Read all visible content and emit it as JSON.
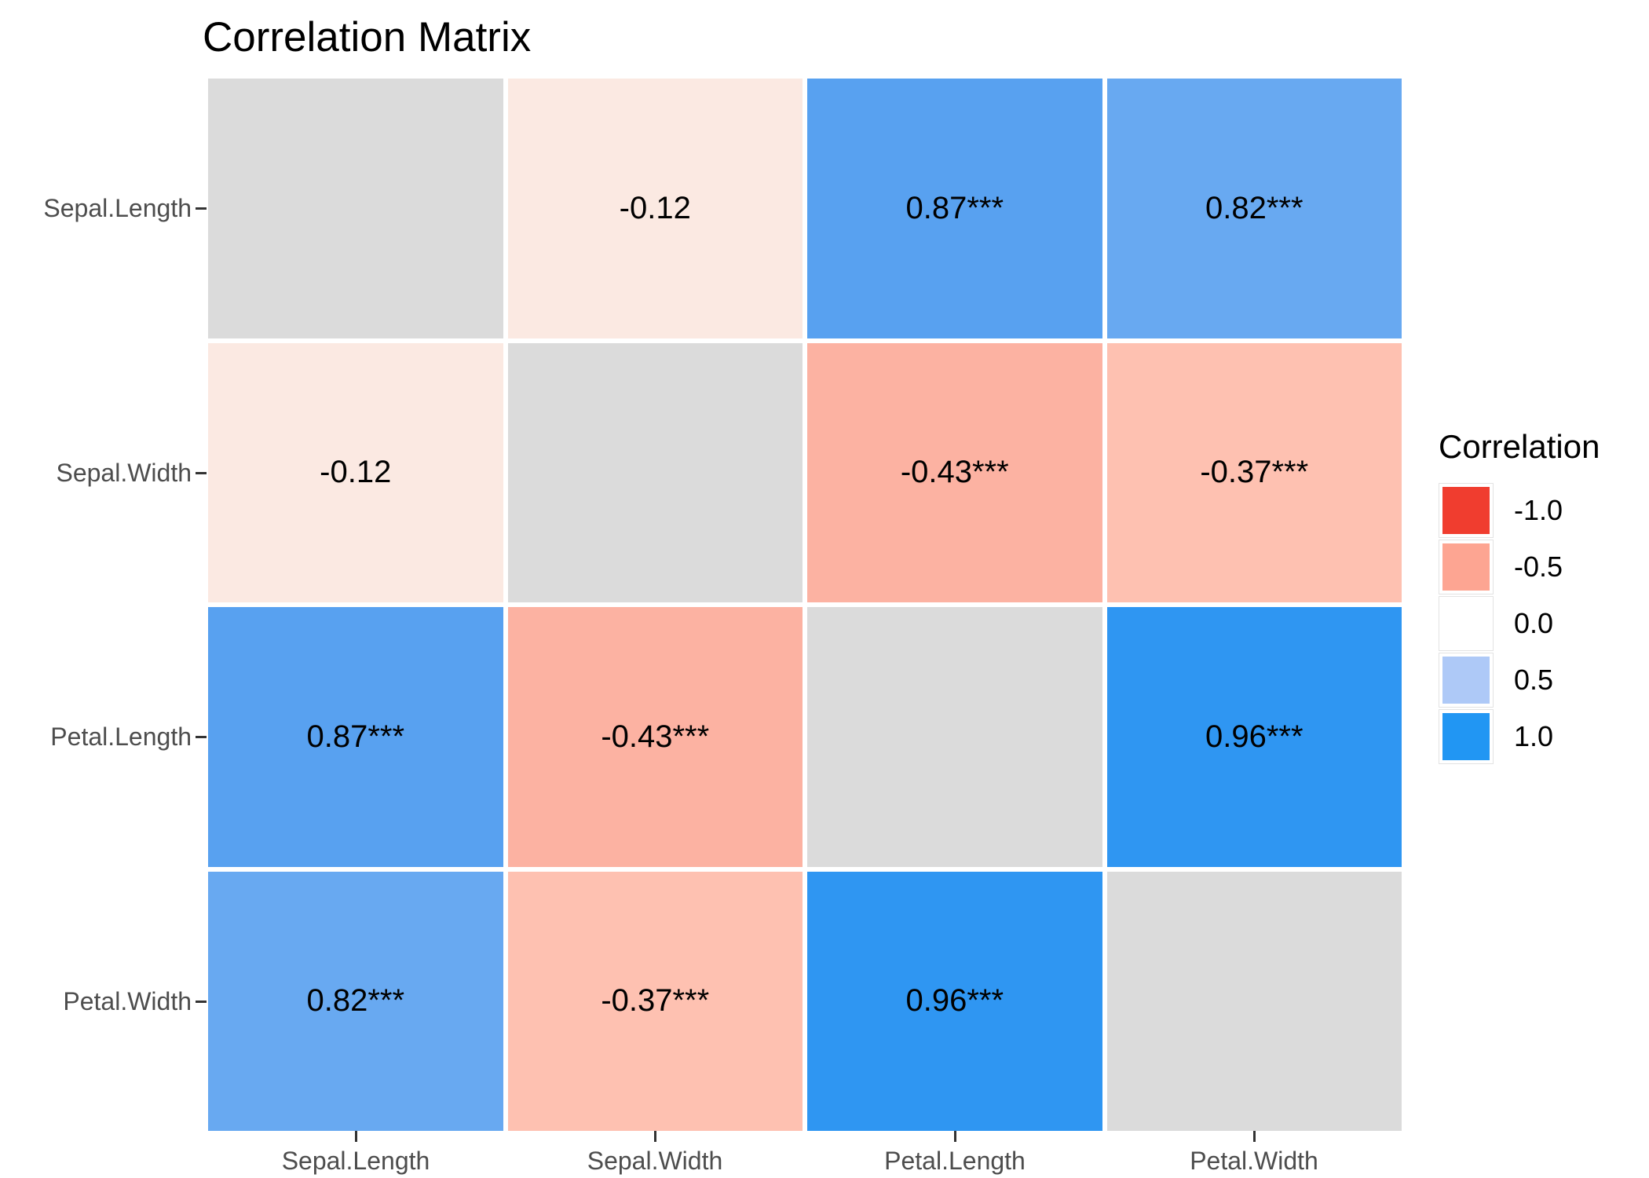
{
  "title": "Correlation Matrix",
  "axes": {
    "y_labels": [
      "Sepal.Length",
      "Sepal.Width",
      "Petal.Length",
      "Petal.Width"
    ],
    "x_labels": [
      "Sepal.Length",
      "Sepal.Width",
      "Petal.Length",
      "Petal.Width"
    ]
  },
  "legend": {
    "title": "Correlation",
    "entries": [
      {
        "label": "-1.0",
        "color": "#F03D2F"
      },
      {
        "label": "-0.5",
        "color": "#FDA592"
      },
      {
        "label": "0.0",
        "color": "#FFFFFF"
      },
      {
        "label": "0.5",
        "color": "#AEC9F7"
      },
      {
        "label": "1.0",
        "color": "#2196F3"
      }
    ]
  },
  "chart_data": {
    "type": "heatmap",
    "title": "Correlation Matrix",
    "legend_title": "Correlation",
    "variables": [
      "Sepal.Length",
      "Sepal.Width",
      "Petal.Length",
      "Petal.Width"
    ],
    "matrix": [
      [
        null,
        -0.12,
        0.87,
        0.82
      ],
      [
        -0.12,
        null,
        -0.43,
        -0.37
      ],
      [
        0.87,
        -0.43,
        null,
        0.96
      ],
      [
        0.82,
        -0.37,
        0.96,
        null
      ]
    ],
    "cell_labels": [
      [
        "",
        "-0.12",
        "0.87***",
        "0.82***"
      ],
      [
        "-0.12",
        "",
        "-0.43***",
        "-0.37***"
      ],
      [
        "0.87***",
        "-0.43***",
        "",
        "0.96***"
      ],
      [
        "0.82***",
        "-0.37***",
        "0.96***",
        ""
      ]
    ],
    "cell_colors": [
      [
        "#DBDBDB",
        "#FBE9E2",
        "#58A1F0",
        "#68A9F1"
      ],
      [
        "#FBE9E2",
        "#DBDBDB",
        "#FCB2A2",
        "#FEC1B1"
      ],
      [
        "#58A1F0",
        "#FCB2A2",
        "#DBDBDB",
        "#2F96F2"
      ],
      [
        "#68A9F1",
        "#FEC1B1",
        "#2F96F2",
        "#DBDBDB"
      ]
    ],
    "diagonal_color": "#DBDBDB",
    "legend_ticks": [
      "-1.0",
      "-0.5",
      "0.0",
      "0.5",
      "1.0"
    ],
    "color_scale": [
      "#F03D2F",
      "#FFFFFF",
      "#2196F3"
    ],
    "scale_range": [
      -1.0,
      1.0
    ],
    "legend_position": "right"
  }
}
